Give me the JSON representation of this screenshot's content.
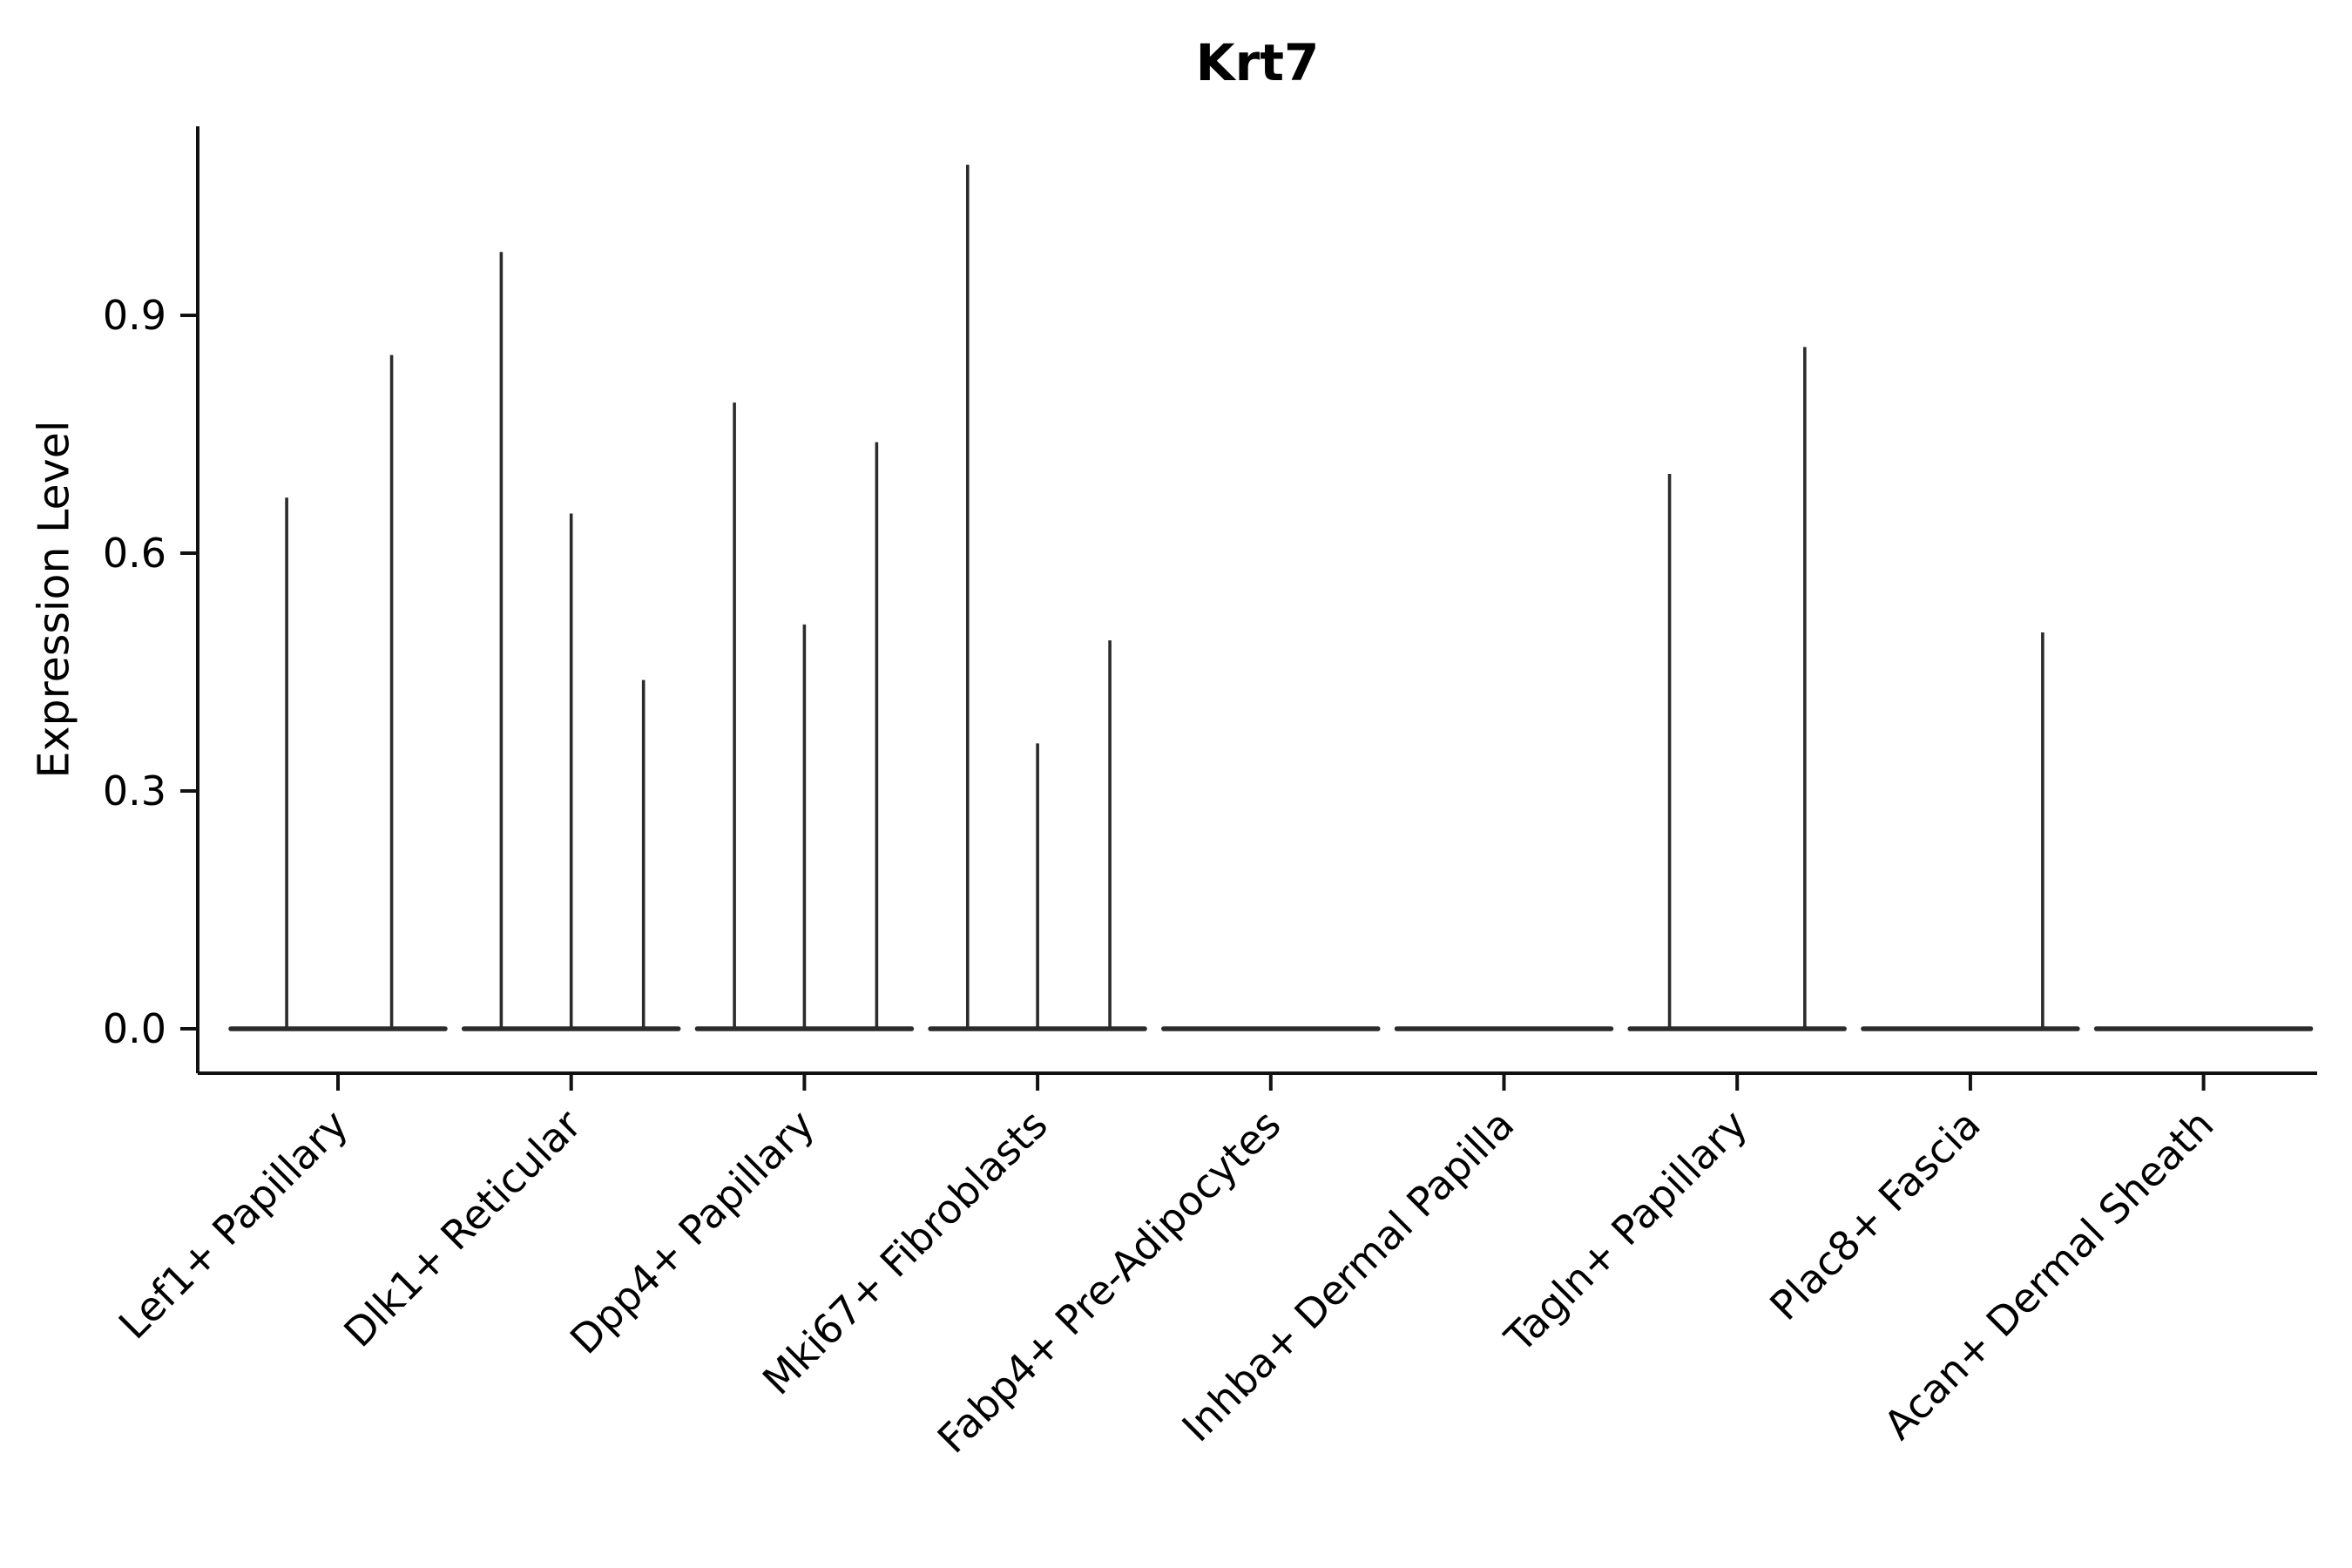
{
  "chart_data": {
    "type": "violin",
    "title": "Krt7",
    "ylabel": "Expression Level",
    "xlabel": "",
    "ylim": [
      -0.056,
      1.139
    ],
    "grid": false,
    "legend": "none",
    "ytick_labels": [
      "0.0",
      "0.3",
      "0.6",
      "0.9"
    ],
    "ytick_values": [
      0,
      0.3,
      0.6,
      0.9
    ],
    "categories": [
      "Lef1+ Papillary",
      "Dlk1+ Reticular",
      "Dpp4+ Papillary",
      "Mki67+ Fibroblasts",
      "Fabp4+ Pre-Adipocytes",
      "Inhba+ Dermal Papilla",
      "Tagln+ Papillary",
      "Plac8+ Fascia",
      "Acan+ Dermal Sheath"
    ],
    "baseline_value": 0,
    "groups": [
      {
        "category": "Lef1+ Papillary",
        "spikes": [
          {
            "pos": -0.22,
            "max": 0.67
          },
          {
            "pos": 0.23,
            "max": 0.85
          }
        ]
      },
      {
        "category": "Dlk1+ Reticular",
        "spikes": [
          {
            "pos": -0.3,
            "max": 0.98
          },
          {
            "pos": 0.0,
            "max": 0.65
          },
          {
            "pos": 0.31,
            "max": 0.44
          }
        ]
      },
      {
        "category": "Dpp4+ Papillary",
        "spikes": [
          {
            "pos": -0.3,
            "max": 0.79
          },
          {
            "pos": 0.0,
            "max": 0.51
          },
          {
            "pos": 0.31,
            "max": 0.74
          }
        ]
      },
      {
        "category": "Mki67+ Fibroblasts",
        "spikes": [
          {
            "pos": -0.3,
            "max": 1.09
          },
          {
            "pos": 0.0,
            "max": 0.36
          },
          {
            "pos": 0.31,
            "max": 0.49
          }
        ]
      },
      {
        "category": "Fabp4+ Pre-Adipocytes",
        "spikes": []
      },
      {
        "category": "Inhba+ Dermal Papilla",
        "spikes": []
      },
      {
        "category": "Tagln+ Papillary",
        "spikes": [
          {
            "pos": -0.29,
            "max": 0.7
          },
          {
            "pos": 0.29,
            "max": 0.86
          }
        ]
      },
      {
        "category": "Plac8+ Fascia",
        "spikes": [
          {
            "pos": 0.31,
            "max": 0.5
          }
        ]
      },
      {
        "category": "Acan+ Dermal Sheath",
        "spikes": []
      }
    ],
    "colors": {
      "violin_line": "#2b2b2b",
      "spine": "#111111",
      "background": "#ffffff"
    }
  }
}
